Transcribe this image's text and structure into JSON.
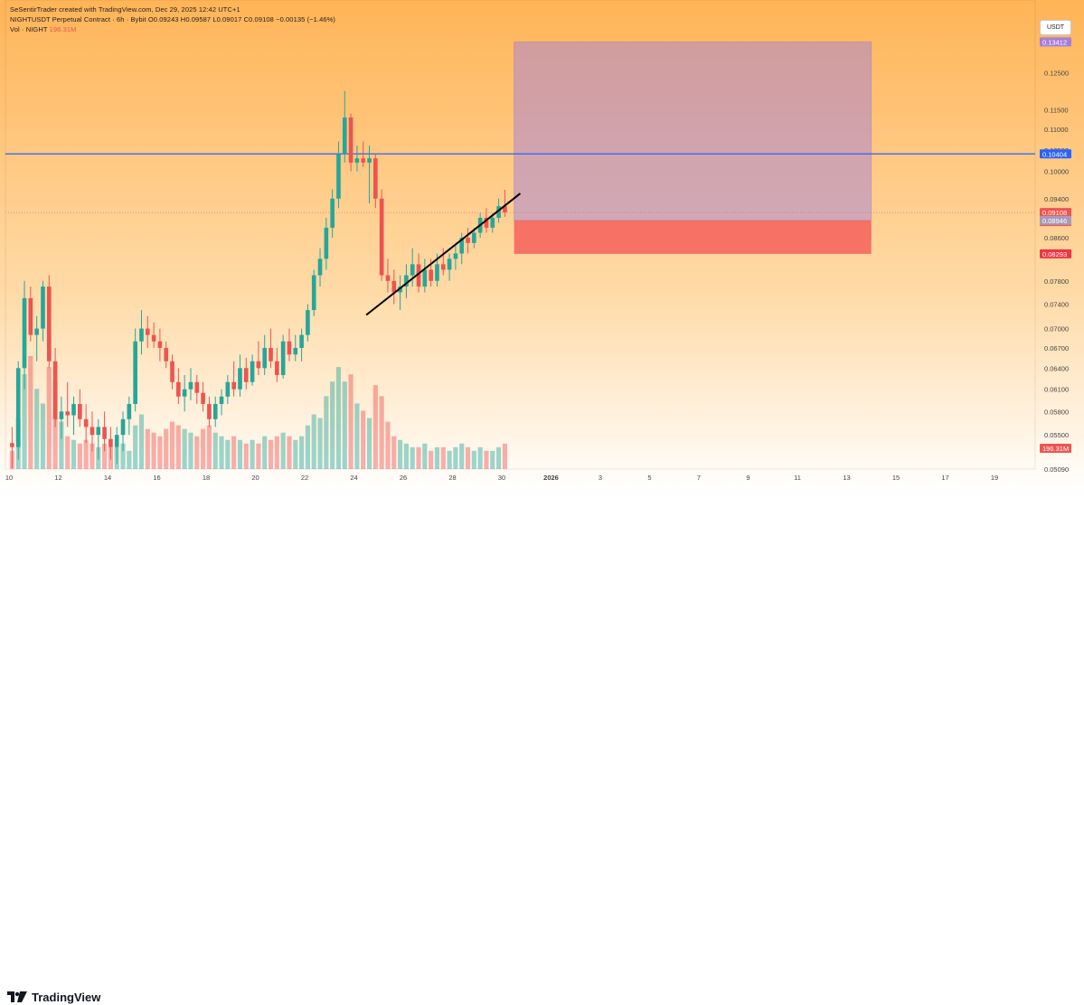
{
  "header": {
    "created_by": "SeSentirTrader created with TradingView.com, Dec 29, 2025 12:42 UTC+1",
    "symbol_line": "NIGHTUSDT Perpetual Contract · 6h · Bybit",
    "ohlc": "O0.09243 H0.09587 L0.09017 C0.09108 −0.00135 (−1.46%)",
    "volume_label": "Vol · NIGHT",
    "volume_value": "196.31M"
  },
  "currency_button": "USDT",
  "footer": {
    "brand": "TradingView",
    "logo_icon": "tradingview-logo-icon"
  },
  "colors": {
    "background_top": "#ffb457",
    "background_bottom": "#ffffff",
    "bull": "#26a69a",
    "bear": "#ef5350",
    "horizontal_line": "#2962ff",
    "target_zone": "#a47fd9",
    "stop_zone": "#f23645",
    "trendline": "#000000"
  },
  "chart_data": {
    "type": "candlestick",
    "timeframe": "6h",
    "yaxis": {
      "scale": "log",
      "ylim": [
        0.0509,
        0.1475
      ],
      "ticks": [
        0.125,
        0.115,
        0.11,
        0.105,
        0.1,
        0.094,
        0.086,
        0.078,
        0.074,
        0.07,
        0.067,
        0.064,
        0.061,
        0.058,
        0.055,
        0.0509
      ],
      "tick_labels": [
        "0.12500",
        "0.11500",
        "0.11000",
        "0.10500",
        "0.10000",
        "0.09400",
        "0.08600",
        "0.07800",
        "0.07400",
        "0.07000",
        "0.06700",
        "0.06400",
        "0.06100",
        "0.05800",
        "0.05500",
        "0.05090"
      ]
    },
    "xaxis": {
      "first_date": "2025-12-10",
      "ticks": [
        {
          "label": "10",
          "date": "2025-12-10"
        },
        {
          "label": "12",
          "date": "2025-12-12"
        },
        {
          "label": "14",
          "date": "2025-12-14"
        },
        {
          "label": "16",
          "date": "2025-12-16"
        },
        {
          "label": "18",
          "date": "2025-12-18"
        },
        {
          "label": "20",
          "date": "2025-12-20"
        },
        {
          "label": "22",
          "date": "2025-12-22"
        },
        {
          "label": "24",
          "date": "2025-12-24"
        },
        {
          "label": "26",
          "date": "2025-12-26"
        },
        {
          "label": "28",
          "date": "2025-12-28"
        },
        {
          "label": "30",
          "date": "2025-12-30"
        },
        {
          "label": "2026",
          "date": "2026-01-01",
          "bold": true
        },
        {
          "label": "3",
          "date": "2026-01-03"
        },
        {
          "label": "5",
          "date": "2026-01-05"
        },
        {
          "label": "7",
          "date": "2026-01-07"
        },
        {
          "label": "9",
          "date": "2026-01-09"
        },
        {
          "label": "11",
          "date": "2026-01-11"
        },
        {
          "label": "13",
          "date": "2026-01-13"
        },
        {
          "label": "15",
          "date": "2026-01-15"
        },
        {
          "label": "17",
          "date": "2026-01-17"
        },
        {
          "label": "19",
          "date": "2026-01-19"
        }
      ]
    },
    "candles": [
      {
        "o": 0.054,
        "h": 0.056,
        "l": 0.051,
        "c": 0.0535,
        "v": 5
      },
      {
        "o": 0.0535,
        "h": 0.065,
        "l": 0.052,
        "c": 0.064,
        "v": 14
      },
      {
        "o": 0.064,
        "h": 0.078,
        "l": 0.061,
        "c": 0.075,
        "v": 26
      },
      {
        "o": 0.075,
        "h": 0.077,
        "l": 0.068,
        "c": 0.069,
        "v": 31
      },
      {
        "o": 0.069,
        "h": 0.072,
        "l": 0.065,
        "c": 0.07,
        "v": 22
      },
      {
        "o": 0.07,
        "h": 0.078,
        "l": 0.068,
        "c": 0.077,
        "v": 18
      },
      {
        "o": 0.077,
        "h": 0.079,
        "l": 0.064,
        "c": 0.065,
        "v": 28
      },
      {
        "o": 0.065,
        "h": 0.067,
        "l": 0.056,
        "c": 0.057,
        "v": 24
      },
      {
        "o": 0.057,
        "h": 0.06,
        "l": 0.0545,
        "c": 0.058,
        "v": 13
      },
      {
        "o": 0.058,
        "h": 0.062,
        "l": 0.056,
        "c": 0.0575,
        "v": 9
      },
      {
        "o": 0.0575,
        "h": 0.06,
        "l": 0.055,
        "c": 0.059,
        "v": 8
      },
      {
        "o": 0.059,
        "h": 0.061,
        "l": 0.056,
        "c": 0.057,
        "v": 7
      },
      {
        "o": 0.057,
        "h": 0.059,
        "l": 0.054,
        "c": 0.056,
        "v": 8
      },
      {
        "o": 0.056,
        "h": 0.058,
        "l": 0.053,
        "c": 0.055,
        "v": 7
      },
      {
        "o": 0.055,
        "h": 0.057,
        "l": 0.052,
        "c": 0.056,
        "v": 6
      },
      {
        "o": 0.056,
        "h": 0.058,
        "l": 0.053,
        "c": 0.0545,
        "v": 7
      },
      {
        "o": 0.0545,
        "h": 0.056,
        "l": 0.052,
        "c": 0.0535,
        "v": 6
      },
      {
        "o": 0.0535,
        "h": 0.056,
        "l": 0.0515,
        "c": 0.055,
        "v": 6
      },
      {
        "o": 0.055,
        "h": 0.058,
        "l": 0.053,
        "c": 0.057,
        "v": 7
      },
      {
        "o": 0.057,
        "h": 0.06,
        "l": 0.055,
        "c": 0.059,
        "v": 5
      },
      {
        "o": 0.059,
        "h": 0.07,
        "l": 0.058,
        "c": 0.068,
        "v": 12
      },
      {
        "o": 0.068,
        "h": 0.073,
        "l": 0.066,
        "c": 0.07,
        "v": 15
      },
      {
        "o": 0.07,
        "h": 0.072,
        "l": 0.067,
        "c": 0.069,
        "v": 11
      },
      {
        "o": 0.069,
        "h": 0.071,
        "l": 0.067,
        "c": 0.068,
        "v": 10
      },
      {
        "o": 0.068,
        "h": 0.07,
        "l": 0.065,
        "c": 0.067,
        "v": 9
      },
      {
        "o": 0.067,
        "h": 0.068,
        "l": 0.064,
        "c": 0.065,
        "v": 11
      },
      {
        "o": 0.065,
        "h": 0.066,
        "l": 0.061,
        "c": 0.062,
        "v": 13
      },
      {
        "o": 0.062,
        "h": 0.064,
        "l": 0.059,
        "c": 0.06,
        "v": 12
      },
      {
        "o": 0.06,
        "h": 0.063,
        "l": 0.058,
        "c": 0.061,
        "v": 11
      },
      {
        "o": 0.061,
        "h": 0.064,
        "l": 0.0595,
        "c": 0.062,
        "v": 10
      },
      {
        "o": 0.062,
        "h": 0.063,
        "l": 0.059,
        "c": 0.0605,
        "v": 9
      },
      {
        "o": 0.0605,
        "h": 0.062,
        "l": 0.058,
        "c": 0.059,
        "v": 11
      },
      {
        "o": 0.059,
        "h": 0.06,
        "l": 0.056,
        "c": 0.057,
        "v": 12
      },
      {
        "o": 0.057,
        "h": 0.06,
        "l": 0.056,
        "c": 0.059,
        "v": 10
      },
      {
        "o": 0.059,
        "h": 0.061,
        "l": 0.0575,
        "c": 0.06,
        "v": 9
      },
      {
        "o": 0.06,
        "h": 0.063,
        "l": 0.059,
        "c": 0.062,
        "v": 8
      },
      {
        "o": 0.062,
        "h": 0.065,
        "l": 0.06,
        "c": 0.061,
        "v": 9
      },
      {
        "o": 0.061,
        "h": 0.066,
        "l": 0.06,
        "c": 0.064,
        "v": 8
      },
      {
        "o": 0.064,
        "h": 0.0655,
        "l": 0.061,
        "c": 0.062,
        "v": 7
      },
      {
        "o": 0.062,
        "h": 0.066,
        "l": 0.0615,
        "c": 0.065,
        "v": 8
      },
      {
        "o": 0.065,
        "h": 0.068,
        "l": 0.063,
        "c": 0.064,
        "v": 7
      },
      {
        "o": 0.064,
        "h": 0.069,
        "l": 0.063,
        "c": 0.067,
        "v": 9
      },
      {
        "o": 0.067,
        "h": 0.07,
        "l": 0.064,
        "c": 0.065,
        "v": 8
      },
      {
        "o": 0.065,
        "h": 0.067,
        "l": 0.062,
        "c": 0.063,
        "v": 9
      },
      {
        "o": 0.063,
        "h": 0.069,
        "l": 0.0625,
        "c": 0.068,
        "v": 10
      },
      {
        "o": 0.068,
        "h": 0.07,
        "l": 0.065,
        "c": 0.066,
        "v": 9
      },
      {
        "o": 0.066,
        "h": 0.069,
        "l": 0.065,
        "c": 0.067,
        "v": 8
      },
      {
        "o": 0.067,
        "h": 0.07,
        "l": 0.065,
        "c": 0.069,
        "v": 9
      },
      {
        "o": 0.069,
        "h": 0.074,
        "l": 0.068,
        "c": 0.073,
        "v": 12
      },
      {
        "o": 0.073,
        "h": 0.08,
        "l": 0.072,
        "c": 0.079,
        "v": 15
      },
      {
        "o": 0.079,
        "h": 0.084,
        "l": 0.077,
        "c": 0.082,
        "v": 14
      },
      {
        "o": 0.082,
        "h": 0.09,
        "l": 0.08,
        "c": 0.088,
        "v": 20
      },
      {
        "o": 0.088,
        "h": 0.096,
        "l": 0.086,
        "c": 0.094,
        "v": 24
      },
      {
        "o": 0.094,
        "h": 0.107,
        "l": 0.092,
        "c": 0.104,
        "v": 28
      },
      {
        "o": 0.104,
        "h": 0.12,
        "l": 0.102,
        "c": 0.113,
        "v": 24
      },
      {
        "o": 0.113,
        "h": 0.114,
        "l": 0.1,
        "c": 0.102,
        "v": 26
      },
      {
        "o": 0.102,
        "h": 0.106,
        "l": 0.1,
        "c": 0.103,
        "v": 18
      },
      {
        "o": 0.103,
        "h": 0.107,
        "l": 0.101,
        "c": 0.102,
        "v": 16
      },
      {
        "o": 0.102,
        "h": 0.106,
        "l": 0.093,
        "c": 0.103,
        "v": 14
      },
      {
        "o": 0.103,
        "h": 0.104,
        "l": 0.092,
        "c": 0.094,
        "v": 23
      },
      {
        "o": 0.094,
        "h": 0.096,
        "l": 0.078,
        "c": 0.079,
        "v": 20
      },
      {
        "o": 0.079,
        "h": 0.082,
        "l": 0.076,
        "c": 0.078,
        "v": 13
      },
      {
        "o": 0.078,
        "h": 0.08,
        "l": 0.074,
        "c": 0.076,
        "v": 9
      },
      {
        "o": 0.076,
        "h": 0.079,
        "l": 0.073,
        "c": 0.077,
        "v": 8
      },
      {
        "o": 0.077,
        "h": 0.081,
        "l": 0.075,
        "c": 0.079,
        "v": 7
      },
      {
        "o": 0.079,
        "h": 0.084,
        "l": 0.077,
        "c": 0.081,
        "v": 6
      },
      {
        "o": 0.081,
        "h": 0.083,
        "l": 0.076,
        "c": 0.077,
        "v": 6
      },
      {
        "o": 0.077,
        "h": 0.082,
        "l": 0.076,
        "c": 0.08,
        "v": 7
      },
      {
        "o": 0.08,
        "h": 0.082,
        "l": 0.077,
        "c": 0.078,
        "v": 5
      },
      {
        "o": 0.078,
        "h": 0.083,
        "l": 0.077,
        "c": 0.081,
        "v": 6
      },
      {
        "o": 0.081,
        "h": 0.084,
        "l": 0.079,
        "c": 0.08,
        "v": 6
      },
      {
        "o": 0.08,
        "h": 0.083,
        "l": 0.078,
        "c": 0.082,
        "v": 5
      },
      {
        "o": 0.082,
        "h": 0.085,
        "l": 0.08,
        "c": 0.083,
        "v": 6
      },
      {
        "o": 0.083,
        "h": 0.087,
        "l": 0.081,
        "c": 0.086,
        "v": 7
      },
      {
        "o": 0.086,
        "h": 0.088,
        "l": 0.083,
        "c": 0.085,
        "v": 6
      },
      {
        "o": 0.085,
        "h": 0.088,
        "l": 0.084,
        "c": 0.087,
        "v": 5
      },
      {
        "o": 0.087,
        "h": 0.091,
        "l": 0.086,
        "c": 0.09,
        "v": 6
      },
      {
        "o": 0.09,
        "h": 0.092,
        "l": 0.087,
        "c": 0.088,
        "v": 5
      },
      {
        "o": 0.088,
        "h": 0.091,
        "l": 0.087,
        "c": 0.09,
        "v": 5
      },
      {
        "o": 0.09,
        "h": 0.094,
        "l": 0.089,
        "c": 0.0924,
        "v": 6
      },
      {
        "o": 0.0924,
        "h": 0.0959,
        "l": 0.0902,
        "c": 0.0911,
        "v": 7
      }
    ],
    "horizontal_line": {
      "value": 0.10404,
      "label": "0.10404"
    },
    "last_price": {
      "value": 0.09108,
      "label": "0.09108",
      "countdown": "17:14"
    },
    "position_zone": {
      "entry": 0.08946,
      "entry_label": "0.08946",
      "target": 0.13412,
      "target_label": "0.13412",
      "stop": 0.08293,
      "stop_label": "0.08293",
      "start_date": "2025-12-30T12:00",
      "end_date": "2026-01-14"
    },
    "trendline": {
      "start": {
        "date": "2025-12-24T12:00",
        "price": 0.0722
      },
      "end": {
        "date": "2025-12-30T18:00",
        "price": 0.0951
      }
    },
    "volume_badge": "196.31M"
  }
}
